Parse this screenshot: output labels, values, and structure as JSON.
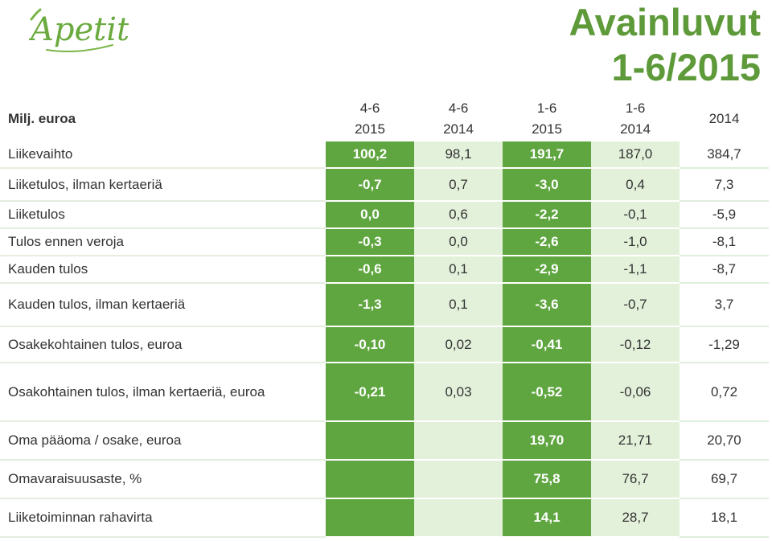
{
  "brand": {
    "logo_text": "Apetit",
    "color": "#5e9a3a"
  },
  "title": {
    "line1": "Avainluvut",
    "line2": "1-6/2015"
  },
  "table": {
    "unit_label": "Milj. euroa",
    "columns": [
      {
        "line1": "4-6",
        "line2": "2015"
      },
      {
        "line1": "4-6",
        "line2": "2014"
      },
      {
        "line1": "1-6",
        "line2": "2015"
      },
      {
        "line1": "1-6",
        "line2": "2014"
      },
      {
        "line1": "",
        "line2": "2014"
      }
    ],
    "rows": [
      {
        "label": "Liikevaihto",
        "values": [
          "100,2",
          "98,1",
          "191,7",
          "187,0",
          "384,7"
        ]
      },
      {
        "label": "Liiketulos, ilman kertaeriä",
        "values": [
          "-0,7",
          "0,7",
          "-3,0",
          "0,4",
          "7,3"
        ]
      },
      {
        "label": "Liiketulos",
        "values": [
          "0,0",
          "0,6",
          "-2,2",
          "-0,1",
          "-5,9"
        ]
      },
      {
        "label": "Tulos ennen veroja",
        "values": [
          "-0,3",
          "0,0",
          "-2,6",
          "-1,0",
          "-8,1"
        ]
      },
      {
        "label": "Kauden tulos",
        "values": [
          "-0,6",
          "0,1",
          "-2,9",
          "-1,1",
          "-8,7"
        ]
      },
      {
        "label": "Kauden tulos, ilman kertaeriä",
        "values": [
          "-1,3",
          "0,1",
          "-3,6",
          "-0,7",
          "3,7"
        ]
      },
      {
        "label": "Osakekohtainen tulos, euroa",
        "values": [
          "-0,10",
          "0,02",
          "-0,41",
          "-0,12",
          "-1,29"
        ]
      },
      {
        "label": "Osakohtainen tulos, ilman kertaeriä, euroa",
        "values": [
          "-0,21",
          "0,03",
          "-0,52",
          "-0,06",
          "0,72"
        ]
      },
      {
        "label": "Oma pääoma / osake, euroa",
        "values": [
          "",
          "",
          "19,70",
          "21,71",
          "20,70"
        ]
      },
      {
        "label": "Omavaraisuusaste, %",
        "values": [
          "",
          "",
          "75,8",
          "76,7",
          "69,7"
        ]
      },
      {
        "label": "Liiketoiminnan rahavirta",
        "values": [
          "",
          "",
          "14,1",
          "28,7",
          "18,1"
        ]
      }
    ]
  }
}
